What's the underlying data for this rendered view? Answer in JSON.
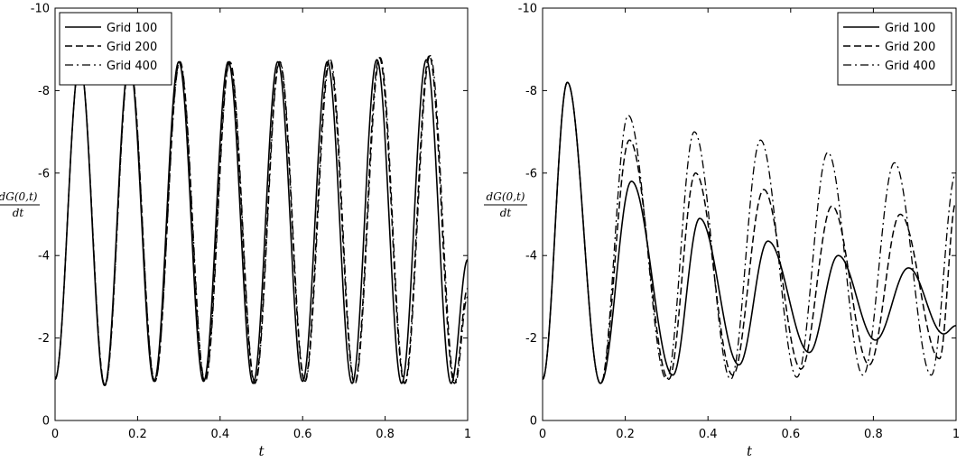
{
  "chart_data": [
    {
      "type": "line",
      "xlabel": "t",
      "ylabel": {
        "numerator": "dG(0,t)",
        "denominator": "dt"
      },
      "xlim": [
        0,
        1
      ],
      "ylim": [
        0,
        -10
      ],
      "y_axis_reversed": true,
      "xticks": [
        "0",
        "0.2",
        "0.4",
        "0.6",
        "0.8",
        "1"
      ],
      "yticks": [
        "0",
        "-2",
        "-4",
        "-6",
        "-8",
        "-10"
      ],
      "grid": false,
      "legend_position": "top-left",
      "series": [
        {
          "name": "Grid 100",
          "style": "solid",
          "peaks": [
            [
              0.06,
              -8.7
            ],
            [
              0.18,
              -8.7
            ],
            [
              0.3,
              -8.7
            ],
            [
              0.42,
              -8.7
            ],
            [
              0.54,
              -8.7
            ],
            [
              0.66,
              -8.7
            ],
            [
              0.78,
              -8.75
            ],
            [
              0.9,
              -8.75
            ]
          ],
          "troughs": [
            [
              0.0,
              -1.0
            ],
            [
              0.12,
              -0.85
            ],
            [
              0.24,
              -0.95
            ],
            [
              0.36,
              -0.95
            ],
            [
              0.48,
              -0.9
            ],
            [
              0.6,
              -0.95
            ],
            [
              0.72,
              -0.9
            ],
            [
              0.84,
              -0.9
            ],
            [
              0.96,
              -0.9
            ]
          ],
          "end": [
            1.0,
            -3.9
          ]
        },
        {
          "name": "Grid 200",
          "style": "dashed",
          "peaks": [
            [
              0.06,
              -8.7
            ],
            [
              0.181,
              -8.7
            ],
            [
              0.302,
              -8.7
            ],
            [
              0.423,
              -8.7
            ],
            [
              0.544,
              -8.7
            ],
            [
              0.665,
              -8.75
            ],
            [
              0.786,
              -8.8
            ],
            [
              0.907,
              -8.85
            ]
          ],
          "troughs": [
            [
              0.0,
              -1.0
            ],
            [
              0.121,
              -0.85
            ],
            [
              0.242,
              -0.95
            ],
            [
              0.363,
              -0.95
            ],
            [
              0.484,
              -0.9
            ],
            [
              0.605,
              -0.95
            ],
            [
              0.726,
              -0.9
            ],
            [
              0.847,
              -0.9
            ],
            [
              0.968,
              -0.9
            ]
          ],
          "end": [
            1.0,
            -3.2
          ]
        },
        {
          "name": "Grid 400",
          "style": "dashdot",
          "peaks": [
            [
              0.06,
              -8.7
            ],
            [
              0.181,
              -8.7
            ],
            [
              0.303,
              -8.7
            ],
            [
              0.424,
              -8.7
            ],
            [
              0.545,
              -8.7
            ],
            [
              0.667,
              -8.75
            ],
            [
              0.788,
              -8.8
            ],
            [
              0.909,
              -8.85
            ]
          ],
          "troughs": [
            [
              0.0,
              -1.0
            ],
            [
              0.121,
              -0.85
            ],
            [
              0.242,
              -0.95
            ],
            [
              0.364,
              -0.95
            ],
            [
              0.485,
              -0.9
            ],
            [
              0.606,
              -0.95
            ],
            [
              0.727,
              -0.9
            ],
            [
              0.848,
              -0.9
            ],
            [
              0.97,
              -0.9
            ]
          ],
          "end": [
            1.0,
            -3.0
          ]
        }
      ]
    },
    {
      "type": "line",
      "xlabel": "t",
      "ylabel": {
        "numerator": "dG(0,t)",
        "denominator": "dt"
      },
      "xlim": [
        0,
        1
      ],
      "ylim": [
        0,
        -10
      ],
      "y_axis_reversed": true,
      "xticks": [
        "0",
        "0.2",
        "0.4",
        "0.6",
        "0.8",
        "1"
      ],
      "yticks": [
        "0",
        "-2",
        "-4",
        "-6",
        "-8",
        "-10"
      ],
      "grid": false,
      "legend_position": "top-right",
      "series": [
        {
          "name": "Grid 100",
          "style": "solid",
          "peaks": [
            [
              0.06,
              -8.2
            ],
            [
              0.215,
              -5.8
            ],
            [
              0.38,
              -4.9
            ],
            [
              0.545,
              -4.35
            ],
            [
              0.715,
              -4.0
            ],
            [
              0.885,
              -3.7
            ]
          ],
          "troughs": [
            [
              0.0,
              -1.0
            ],
            [
              0.14,
              -0.9
            ],
            [
              0.315,
              -1.1
            ],
            [
              0.475,
              -1.35
            ],
            [
              0.645,
              -1.65
            ],
            [
              0.805,
              -1.95
            ],
            [
              0.97,
              -2.1
            ]
          ],
          "end": [
            1.0,
            -2.3
          ]
        },
        {
          "name": "Grid 200",
          "style": "dashed",
          "peaks": [
            [
              0.06,
              -8.2
            ],
            [
              0.21,
              -6.8
            ],
            [
              0.37,
              -6.0
            ],
            [
              0.535,
              -5.6
            ],
            [
              0.7,
              -5.2
            ],
            [
              0.865,
              -5.0
            ]
          ],
          "troughs": [
            [
              0.0,
              -1.0
            ],
            [
              0.14,
              -0.9
            ],
            [
              0.305,
              -1.0
            ],
            [
              0.46,
              -1.1
            ],
            [
              0.625,
              -1.25
            ],
            [
              0.79,
              -1.35
            ],
            [
              0.96,
              -1.5
            ]
          ],
          "end": [
            1.0,
            -5.3
          ]
        },
        {
          "name": "Grid 400",
          "style": "dashdot",
          "peaks": [
            [
              0.06,
              -8.2
            ],
            [
              0.207,
              -7.4
            ],
            [
              0.367,
              -7.0
            ],
            [
              0.527,
              -6.8
            ],
            [
              0.69,
              -6.5
            ],
            [
              0.851,
              -6.25
            ]
          ],
          "troughs": [
            [
              0.0,
              -1.0
            ],
            [
              0.14,
              -0.9
            ],
            [
              0.3,
              -1.0
            ],
            [
              0.455,
              -1.0
            ],
            [
              0.615,
              -1.05
            ],
            [
              0.775,
              -1.1
            ],
            [
              0.94,
              -1.1
            ]
          ],
          "end": [
            1.0,
            -6.0
          ]
        }
      ]
    }
  ]
}
